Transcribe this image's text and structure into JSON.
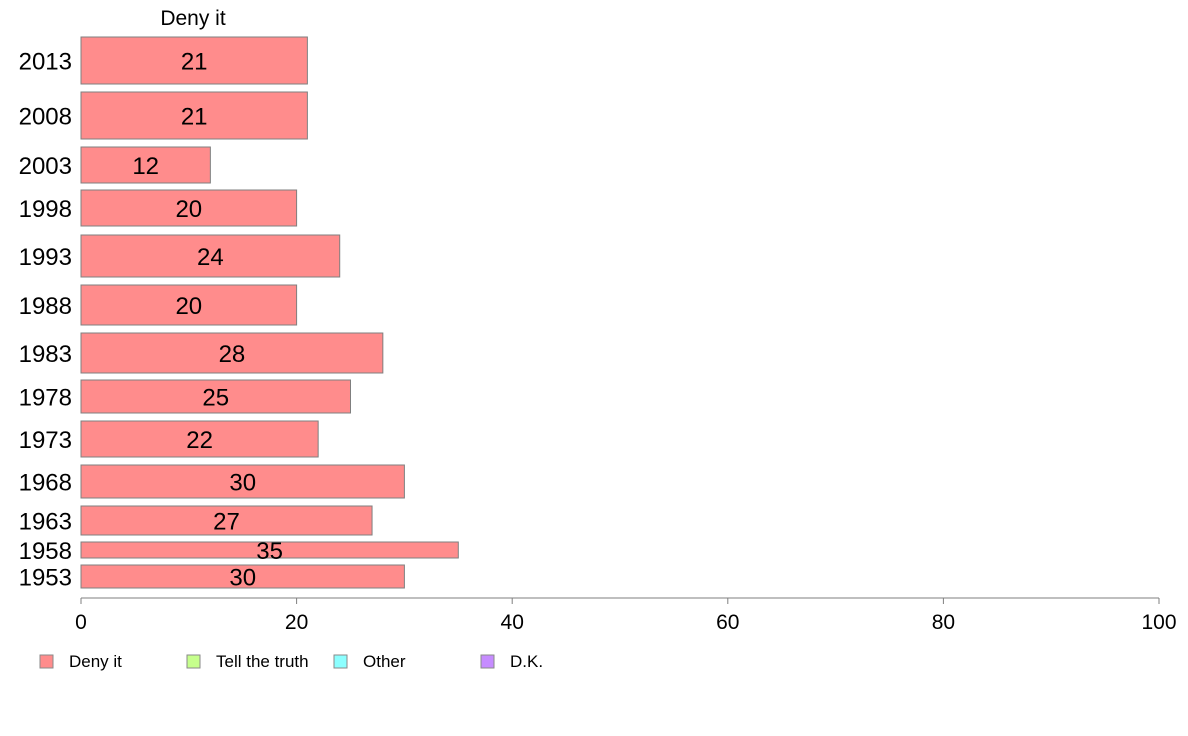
{
  "chart_data": {
    "type": "bar",
    "orientation": "horizontal",
    "title": "Deny it",
    "categories": [
      "2013",
      "2008",
      "2003",
      "1998",
      "1993",
      "1988",
      "1983",
      "1978",
      "1973",
      "1968",
      "1963",
      "1958",
      "1953"
    ],
    "series": [
      {
        "name": "Deny it",
        "color": "#ff8c8c",
        "values": [
          21,
          21,
          12,
          20,
          24,
          20,
          28,
          25,
          22,
          30,
          27,
          35,
          30
        ]
      }
    ],
    "xlim": [
      0,
      100
    ],
    "xticks": [
      "0",
      "20",
      "40",
      "60",
      "80",
      "100"
    ],
    "grid": false,
    "legend": {
      "position": "bottom-left",
      "entries": [
        {
          "label": "Deny it",
          "color": "#ff8c8c"
        },
        {
          "label": "Tell the truth",
          "color": "#c6ff8c"
        },
        {
          "label": "Other",
          "color": "#8cffff"
        },
        {
          "label": "D.K.",
          "color": "#c68cff"
        }
      ]
    }
  }
}
